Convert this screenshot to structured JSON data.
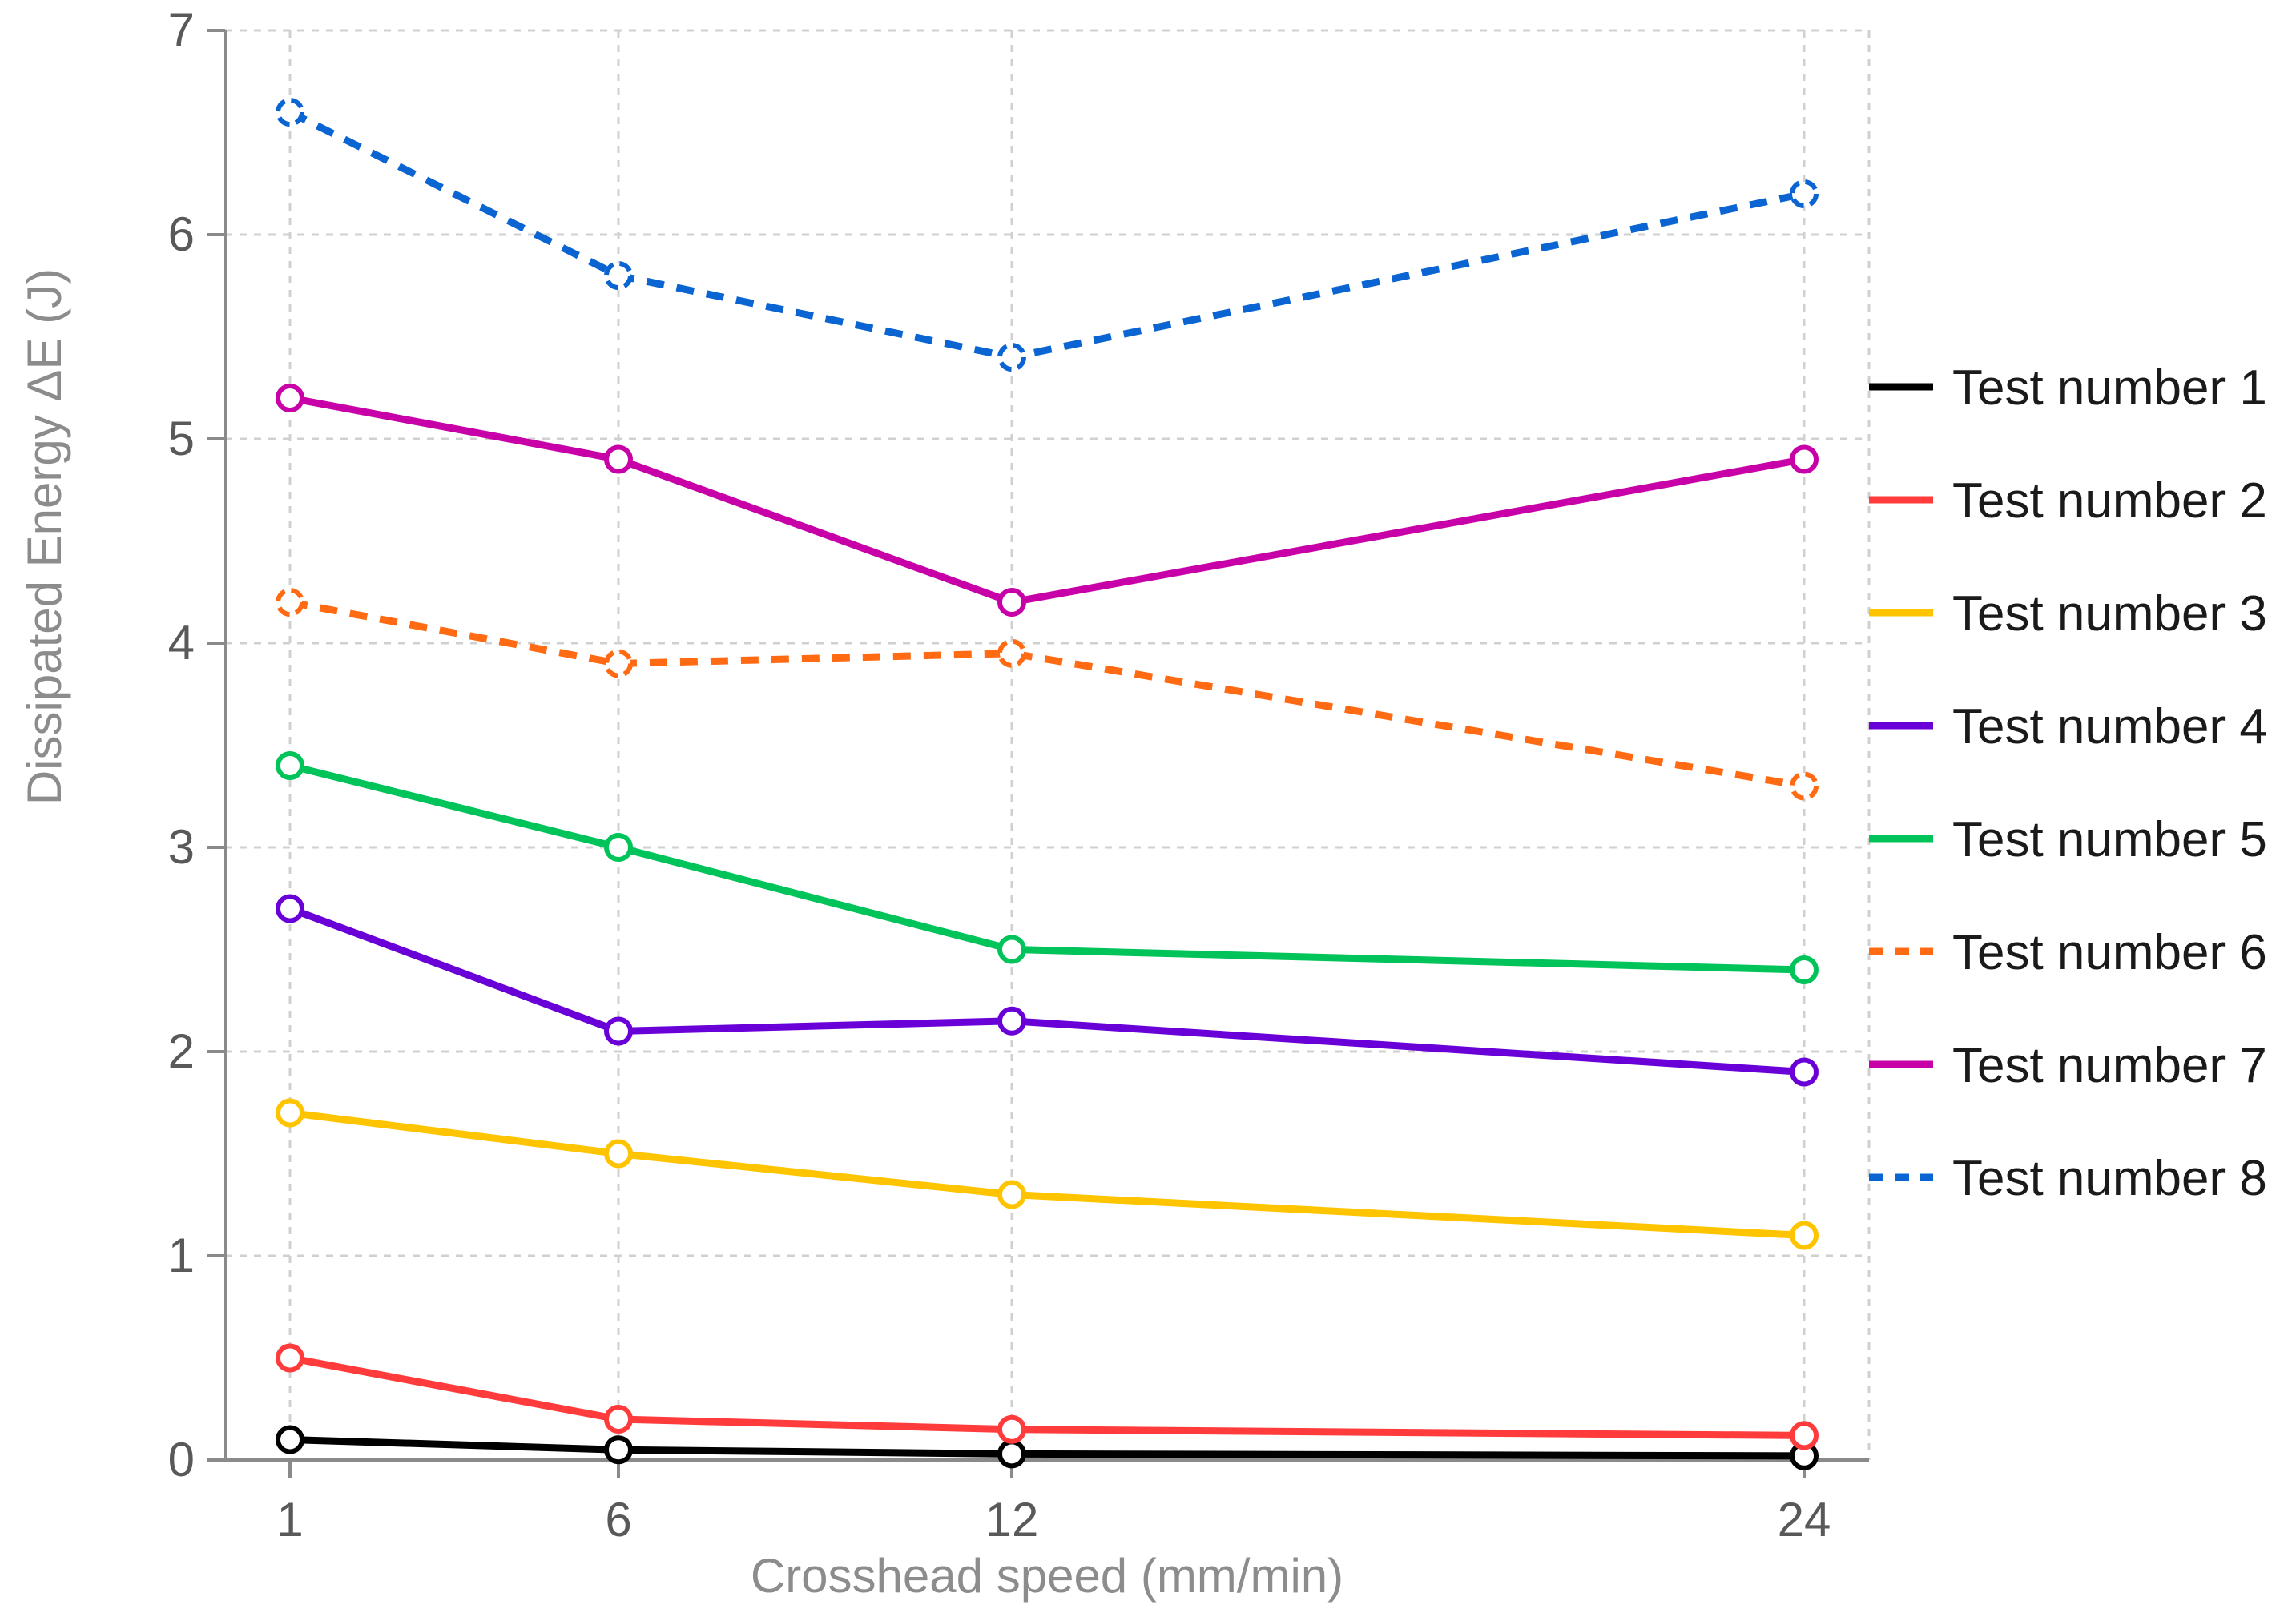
{
  "chart_data": {
    "type": "line",
    "title": "",
    "xlabel": "Crosshead speed (mm/min)",
    "ylabel": "Dissipated Energy ΔE (J)",
    "categories": [
      "1",
      "6",
      "12",
      "24"
    ],
    "x": [
      1,
      6,
      12,
      24
    ],
    "ylim": [
      0,
      7
    ],
    "yticks": [
      0,
      1,
      2,
      3,
      4,
      5,
      6,
      7
    ],
    "grid": true,
    "legend_position": "right",
    "series": [
      {
        "name": "Test number 1",
        "values": [
          0.1,
          0.05,
          0.03,
          0.02
        ],
        "color": "#000000",
        "dashed": false
      },
      {
        "name": "Test number 2",
        "values": [
          0.5,
          0.2,
          0.15,
          0.12
        ],
        "color": "#ff3b3b",
        "dashed": false
      },
      {
        "name": "Test number 3",
        "values": [
          1.7,
          1.5,
          1.3,
          1.1
        ],
        "color": "#ffc400",
        "dashed": false
      },
      {
        "name": "Test number 4",
        "values": [
          2.7,
          2.1,
          2.15,
          1.9
        ],
        "color": "#6a00d8",
        "dashed": false
      },
      {
        "name": "Test number 5",
        "values": [
          3.4,
          3.0,
          2.5,
          2.4
        ],
        "color": "#00c35a",
        "dashed": false
      },
      {
        "name": "Test number 6",
        "values": [
          4.2,
          3.9,
          3.95,
          3.3
        ],
        "color": "#ff6a13",
        "dashed": true
      },
      {
        "name": "Test number 7",
        "values": [
          5.2,
          4.9,
          4.2,
          4.9
        ],
        "color": "#c800a8",
        "dashed": false
      },
      {
        "name": "Test number 8",
        "values": [
          6.6,
          5.8,
          5.4,
          6.2
        ],
        "color": "#0a64d2",
        "dashed": true
      }
    ]
  }
}
